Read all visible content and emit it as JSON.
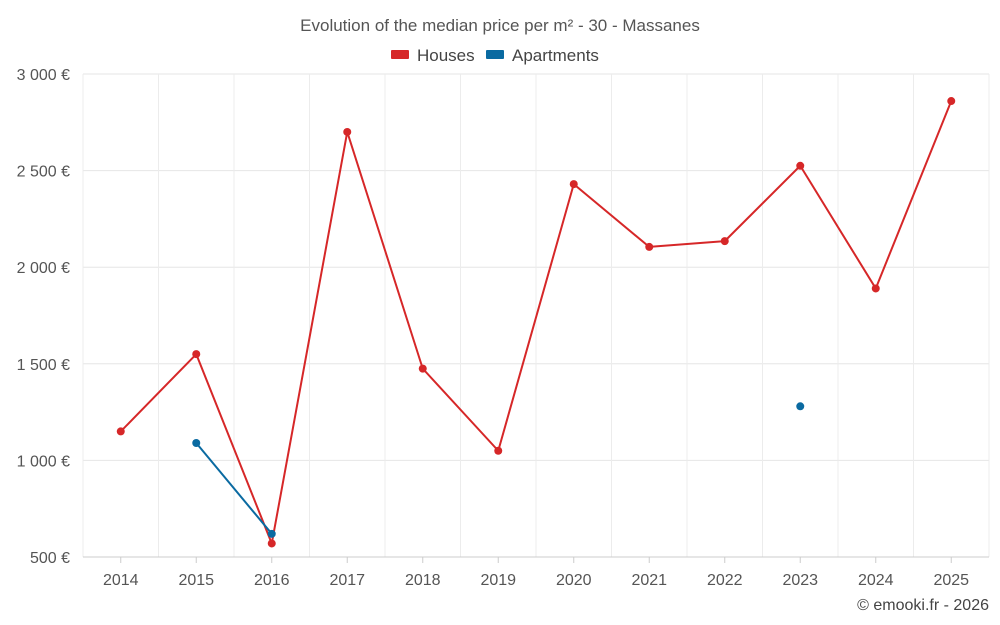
{
  "chart_data": {
    "type": "line",
    "title": "Evolution of the median price per m² - 30 - Massanes",
    "categories": [
      "2014",
      "2015",
      "2016",
      "2017",
      "2018",
      "2019",
      "2020",
      "2021",
      "2022",
      "2023",
      "2024",
      "2025"
    ],
    "series": [
      {
        "name": "Houses",
        "color": "#d62728",
        "values": [
          1150,
          1550,
          570,
          2700,
          1475,
          1050,
          2430,
          2105,
          2135,
          2525,
          1890,
          2860
        ]
      },
      {
        "name": "Apartments",
        "color": "#0a6aa1",
        "values": [
          null,
          1090,
          620,
          null,
          null,
          null,
          null,
          null,
          null,
          1280,
          null,
          null
        ]
      }
    ],
    "ylim": [
      500,
      3000
    ],
    "yticks": [
      500,
      1000,
      1500,
      2000,
      2500,
      3000
    ],
    "ytick_labels": [
      "500 €",
      "1 000 €",
      "1 500 €",
      "2 000 €",
      "2 500 €",
      "3 000 €"
    ],
    "xlabel": "",
    "ylabel": "",
    "grid": true,
    "legend_position": "top-center"
  },
  "footer": {
    "credit": "© emooki.fr - 2026"
  }
}
